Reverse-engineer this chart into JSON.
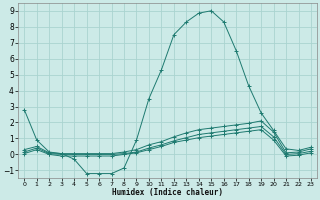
{
  "xlabel": "Humidex (Indice chaleur)",
  "background_color": "#cceae7",
  "grid_color": "#aad4d0",
  "line_color": "#1e7a70",
  "xlim": [
    -0.5,
    23.5
  ],
  "ylim": [
    -1.5,
    9.5
  ],
  "yticks": [
    -1,
    0,
    1,
    2,
    3,
    4,
    5,
    6,
    7,
    8,
    9
  ],
  "xticks": [
    0,
    1,
    2,
    3,
    4,
    5,
    6,
    7,
    8,
    9,
    10,
    11,
    12,
    13,
    14,
    15,
    16,
    17,
    18,
    19,
    20,
    21,
    22,
    23
  ],
  "series": [
    {
      "x": [
        0,
        1,
        2,
        3,
        4,
        5,
        6,
        7,
        8,
        9,
        10,
        11,
        12,
        13,
        14,
        15,
        16,
        17,
        18,
        19,
        20,
        21,
        22,
        23
      ],
      "y": [
        2.8,
        0.9,
        0.15,
        0.05,
        -0.3,
        -1.2,
        -1.2,
        -1.2,
        -0.85,
        0.9,
        3.5,
        5.3,
        7.5,
        8.3,
        8.85,
        9.0,
        8.3,
        6.5,
        4.3,
        2.6,
        1.5,
        0.35,
        0.25,
        0.45
      ]
    },
    {
      "x": [
        0,
        1,
        2,
        3,
        4,
        5,
        6,
        7,
        8,
        9,
        10,
        11,
        12,
        13,
        14,
        15,
        16,
        17,
        18,
        19,
        20,
        21,
        22,
        23
      ],
      "y": [
        0.3,
        0.5,
        0.1,
        0.05,
        0.05,
        0.05,
        0.05,
        0.05,
        0.15,
        0.3,
        0.6,
        0.8,
        1.1,
        1.35,
        1.55,
        1.65,
        1.75,
        1.85,
        1.95,
        2.1,
        1.4,
        0.1,
        0.15,
        0.35
      ]
    },
    {
      "x": [
        0,
        1,
        2,
        3,
        4,
        5,
        6,
        7,
        8,
        9,
        10,
        11,
        12,
        13,
        14,
        15,
        16,
        17,
        18,
        19,
        20,
        21,
        22,
        23
      ],
      "y": [
        0.15,
        0.4,
        0.05,
        0.0,
        0.0,
        0.0,
        0.0,
        0.0,
        0.05,
        0.15,
        0.4,
        0.6,
        0.85,
        1.05,
        1.25,
        1.35,
        1.45,
        1.55,
        1.65,
        1.75,
        1.1,
        0.0,
        0.05,
        0.2
      ]
    },
    {
      "x": [
        0,
        1,
        2,
        3,
        4,
        5,
        6,
        7,
        8,
        9,
        10,
        11,
        12,
        13,
        14,
        15,
        16,
        17,
        18,
        19,
        20,
        21,
        22,
        23
      ],
      "y": [
        0.05,
        0.3,
        0.0,
        -0.1,
        -0.1,
        -0.1,
        -0.1,
        -0.1,
        0.0,
        0.1,
        0.3,
        0.5,
        0.75,
        0.9,
        1.05,
        1.15,
        1.25,
        1.35,
        1.45,
        1.55,
        0.9,
        -0.1,
        -0.05,
        0.1
      ]
    }
  ]
}
